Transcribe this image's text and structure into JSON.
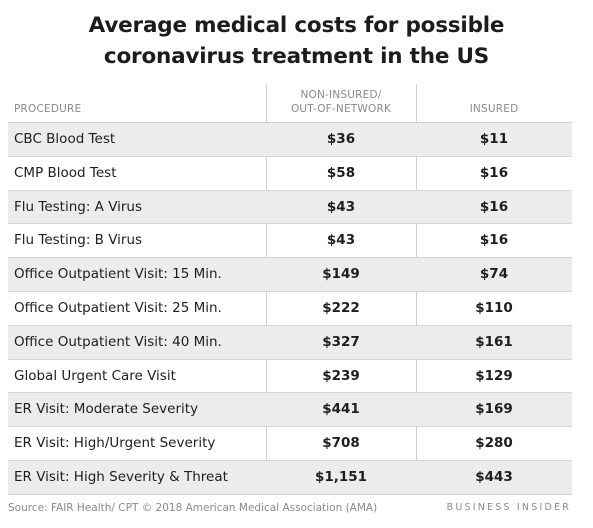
{
  "title": "Average medical costs for possible coronavirus treatment in the US",
  "headers": {
    "procedure": "PROCEDURE",
    "non_insured": "NON-INSURED/ OUT-OF-NETWORK",
    "insured": "INSURED"
  },
  "rows": [
    {
      "procedure": "CBC Blood Test",
      "non_insured": "$36",
      "insured": "$11"
    },
    {
      "procedure": "CMP Blood Test",
      "non_insured": "$58",
      "insured": "$16"
    },
    {
      "procedure": "Flu Testing: A Virus",
      "non_insured": "$43",
      "insured": "$16"
    },
    {
      "procedure": "Flu Testing: B Virus",
      "non_insured": "$43",
      "insured": "$16"
    },
    {
      "procedure": "Office Outpatient Visit: 15 Min.",
      "non_insured": "$149",
      "insured": "$74"
    },
    {
      "procedure": "Office Outpatient Visit: 25 Min.",
      "non_insured": "$222",
      "insured": "$110"
    },
    {
      "procedure": "Office Outpatient Visit: 40 Min.",
      "non_insured": "$327",
      "insured": "$161"
    },
    {
      "procedure": "Global Urgent Care Visit",
      "non_insured": "$239",
      "insured": "$129"
    },
    {
      "procedure": "ER Visit: Moderate Severity",
      "non_insured": "$441",
      "insured": "$169"
    },
    {
      "procedure": "ER Visit: High/Urgent Severity",
      "non_insured": "$708",
      "insured": "$280"
    },
    {
      "procedure": "ER Visit: High Severity & Threat",
      "non_insured": "$1,151",
      "insured": "$443"
    }
  ],
  "source": "Source: FAIR Health/ CPT © 2018 American Medical Association (AMA)",
  "brand": "BUSINESS INSIDER"
}
